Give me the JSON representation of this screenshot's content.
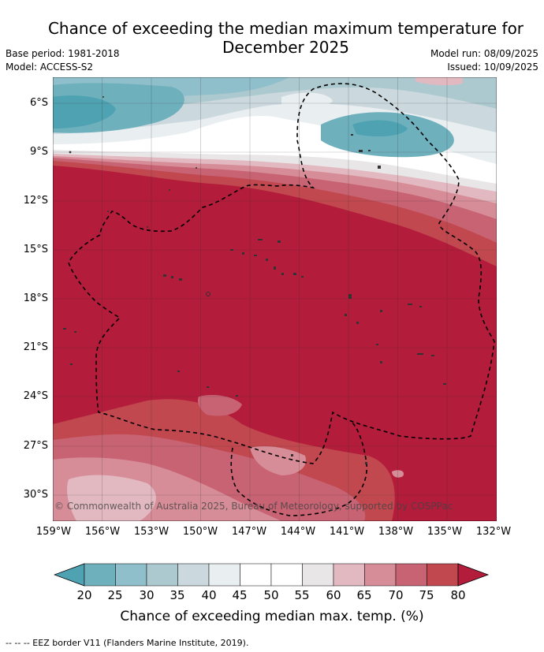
{
  "title_line1": "Chance of exceeding the median maximum temperature for",
  "title_line2": "December 2025",
  "meta_left": {
    "base_period": "Base period: 1981-2018",
    "model": "Model: ACCESS-S2"
  },
  "meta_right": {
    "model_run": "Model run: 08/09/2025",
    "issued": "Issued: 10/09/2025"
  },
  "map": {
    "copyright": "© Commonwealth of Australia 2025, Bureau of Meteorology, supported by COSPPac",
    "lat_ticks": [
      "6°S",
      "9°S",
      "12°S",
      "15°S",
      "18°S",
      "21°S",
      "24°S",
      "27°S",
      "30°S"
    ],
    "lon_ticks": [
      "159°W",
      "156°W",
      "153°W",
      "150°W",
      "147°W",
      "144°W",
      "141°W",
      "138°W",
      "135°W",
      "132°W"
    ]
  },
  "colorbar": {
    "labels": [
      "20",
      "25",
      "30",
      "35",
      "40",
      "45",
      "50",
      "55",
      "60",
      "65",
      "70",
      "75",
      "80"
    ],
    "colors": [
      "#4ea2b1",
      "#6fb0bd",
      "#8fbfca",
      "#adc9d0",
      "#cbd9de",
      "#e9eef1",
      "#ffffff",
      "#ffffff",
      "#e9e6e8",
      "#e2b9c0",
      "#d78d98",
      "#c86374",
      "#c1484f",
      "#b31c3a"
    ],
    "title": "Chance of exceeding median max. temp. (%)"
  },
  "footer": "--  --  -- EEZ border V11 (Flanders Marine Institute, 2019)."
}
